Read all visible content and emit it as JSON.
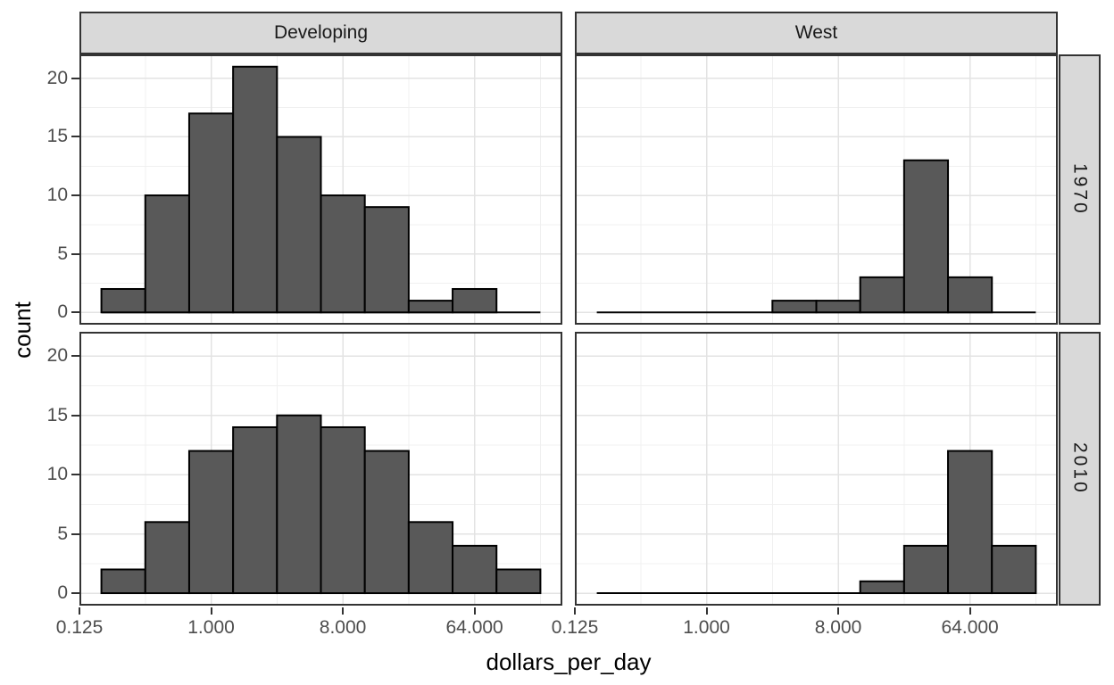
{
  "chart_data": {
    "type": "bar",
    "subtype": "faceted_histogram",
    "title": "",
    "xlabel": "dollars_per_day",
    "ylabel": "count",
    "x_scale": "log2",
    "grid": true,
    "legend": null,
    "x_tick_labels": [
      "0.125",
      "1.000",
      "8.000",
      "64.000"
    ],
    "x_tick_values": [
      0.125,
      1,
      8,
      64
    ],
    "x_tick_log2": [
      -3,
      0,
      3,
      6
    ],
    "x_minor_log2": [
      -1.5,
      1.5,
      4.5,
      7.5
    ],
    "x_range_log2": [
      -3,
      8
    ],
    "y_tick_labels": [
      "0",
      "5",
      "10",
      "15",
      "20"
    ],
    "y_tick_values": [
      0,
      5,
      10,
      15,
      20
    ],
    "y_minor_values": [
      2.5,
      7.5,
      12.5,
      17.5
    ],
    "y_range": [
      -1.05,
      22.05
    ],
    "bin_width_log2": 1,
    "zero_baseline_log2": [
      -2.5,
      7.5
    ],
    "facet_cols": [
      {
        "label": "Developing"
      },
      {
        "label": "West"
      }
    ],
    "facet_rows": [
      {
        "label": "1970"
      },
      {
        "label": "2010"
      }
    ],
    "panels": [
      {
        "col": "Developing",
        "row": "1970",
        "bin_center_log2": [
          -2,
          -1,
          0,
          1,
          2,
          3,
          4,
          5,
          6
        ],
        "bin_center_dollars": [
          0.25,
          0.5,
          1,
          2,
          4,
          8,
          16,
          32,
          64
        ],
        "counts": [
          2,
          10,
          17,
          21,
          15,
          10,
          9,
          1,
          2
        ]
      },
      {
        "col": "West",
        "row": "1970",
        "bin_center_log2": [
          2,
          3,
          4,
          5,
          6
        ],
        "bin_center_dollars": [
          4,
          8,
          16,
          32,
          64
        ],
        "counts": [
          1,
          1,
          3,
          13,
          3
        ]
      },
      {
        "col": "Developing",
        "row": "2010",
        "bin_center_log2": [
          -2,
          -1,
          0,
          1,
          2,
          3,
          4,
          5,
          6,
          7
        ],
        "bin_center_dollars": [
          0.25,
          0.5,
          1,
          2,
          4,
          8,
          16,
          32,
          64,
          128
        ],
        "counts": [
          2,
          6,
          12,
          14,
          15,
          14,
          12,
          6,
          4,
          2
        ]
      },
      {
        "col": "West",
        "row": "2010",
        "bin_center_log2": [
          4,
          5,
          6,
          7
        ],
        "bin_center_dollars": [
          16,
          32,
          64,
          128
        ],
        "counts": [
          1,
          4,
          12,
          4
        ]
      }
    ],
    "colors": {
      "bar_fill": "#595959",
      "bar_stroke": "#000000",
      "strip_bg": "#D9D9D9",
      "strip_text": "#1A1A1A",
      "panel_bg": "#FFFFFF",
      "panel_border": "#333333",
      "grid_major": "#E3E3E3",
      "grid_minor": "#F0F0F0",
      "axis_text": "#4D4D4D",
      "axis_title": "#000000",
      "background": "#FFFFFF"
    }
  }
}
